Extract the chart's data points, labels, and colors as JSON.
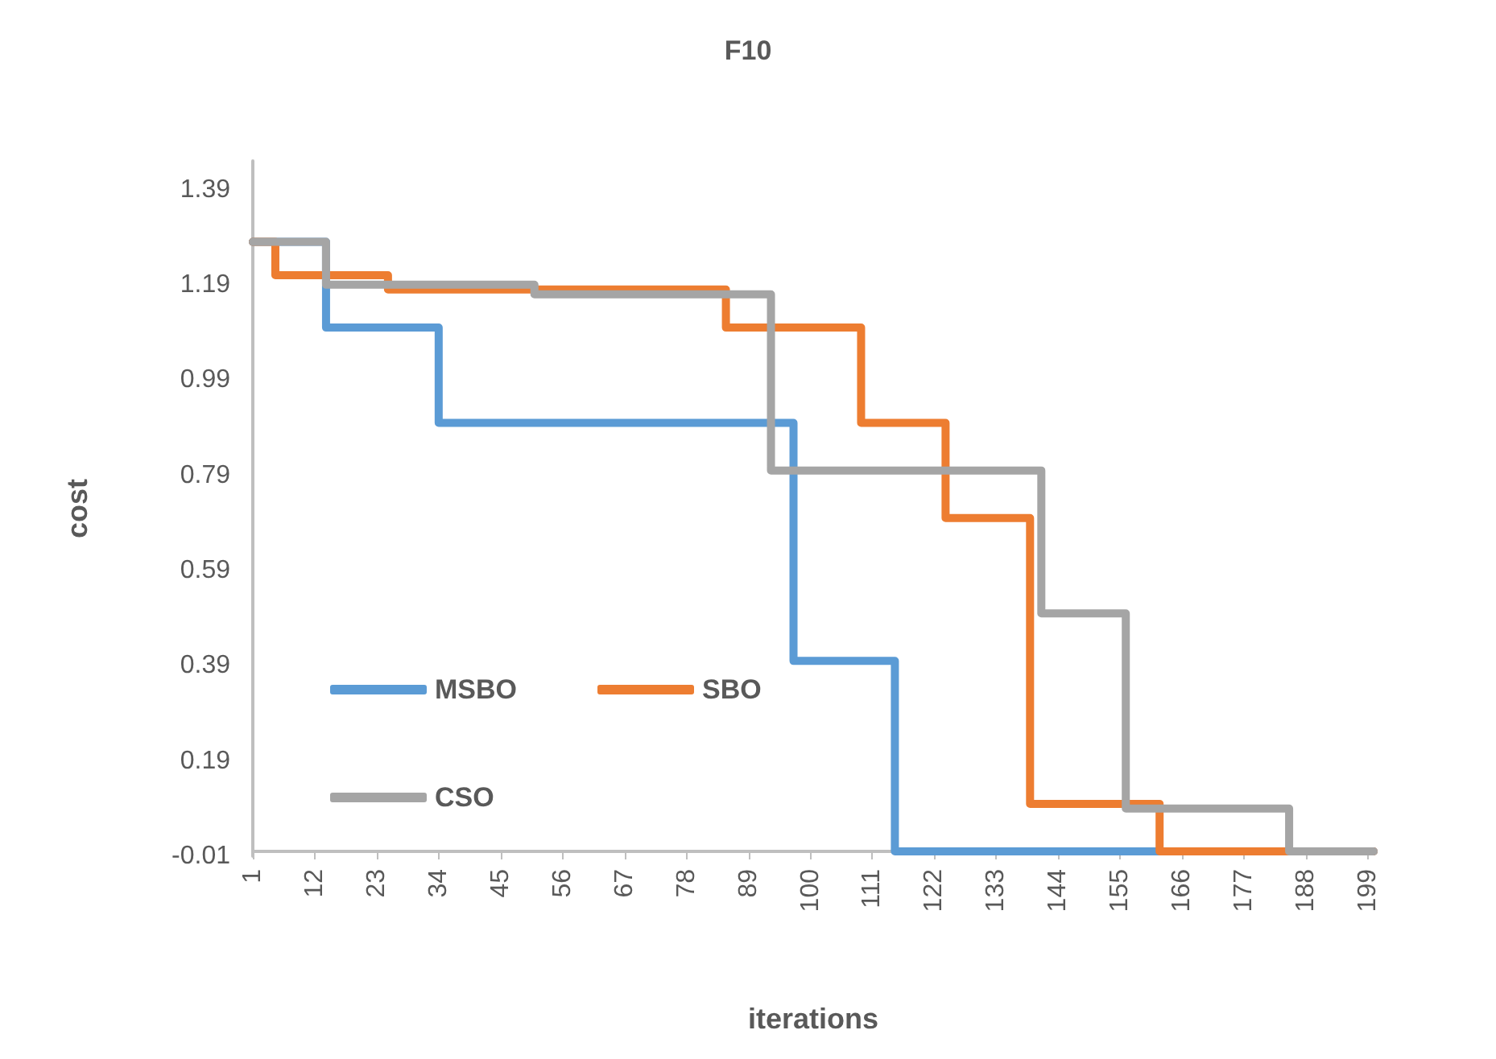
{
  "chart_data": {
    "type": "step",
    "title": "F10",
    "xlabel": "iterations",
    "ylabel": "cost",
    "xlim": [
      1,
      200
    ],
    "xticks": [
      1,
      12,
      23,
      34,
      45,
      56,
      67,
      78,
      89,
      100,
      111,
      122,
      133,
      144,
      155,
      166,
      177,
      188,
      199
    ],
    "ylim": [
      -0.01,
      1.45
    ],
    "yticks": [
      -0.01,
      0.19,
      0.39,
      0.59,
      0.79,
      0.99,
      1.19,
      1.39
    ],
    "grid": false,
    "legend": "bottom left",
    "marker": "none",
    "line_style": "solid",
    "series": [
      {
        "name": "MSBO",
        "color": "#5b9bd5",
        "x": [
          1,
          14,
          34,
          97,
          115,
          200
        ],
        "values": [
          1.28,
          1.1,
          0.9,
          0.4,
          0.0,
          0.0
        ]
      },
      {
        "name": "SBO",
        "color": "#ed7d31",
        "x": [
          1,
          5,
          25,
          85,
          109,
          124,
          139,
          162,
          200
        ],
        "values": [
          1.28,
          1.21,
          1.18,
          1.1,
          0.9,
          0.7,
          0.1,
          0.0,
          0.0
        ]
      },
      {
        "name": "CSO",
        "color": "#a5a5a5",
        "x": [
          1,
          14,
          51,
          93,
          141,
          156,
          185,
          200
        ],
        "values": [
          1.28,
          1.19,
          1.17,
          0.8,
          0.5,
          0.09,
          0.0,
          0.0
        ]
      }
    ]
  }
}
